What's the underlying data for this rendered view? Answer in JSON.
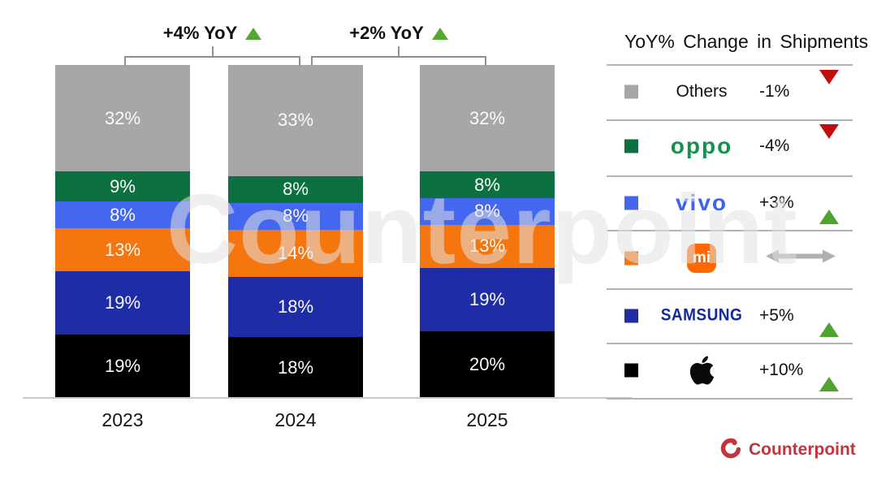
{
  "watermark": "Counterpoint",
  "chart_data": {
    "type": "bar",
    "stacked": true,
    "unit": "%",
    "title": "",
    "xlabel": "",
    "ylabel": "",
    "legend_position": "right",
    "grid": false,
    "categories": [
      "2023",
      "2024",
      "2025"
    ],
    "series": [
      {
        "name": "Others",
        "color": "#a7a7a7",
        "values": [
          32,
          33,
          32
        ]
      },
      {
        "name": "OPPO",
        "color": "#0d7040",
        "values": [
          9,
          8,
          8
        ]
      },
      {
        "name": "vivo",
        "color": "#4467f0",
        "values": [
          8,
          8,
          8
        ]
      },
      {
        "name": "Xiaomi",
        "color": "#f5750e",
        "values": [
          13,
          14,
          13
        ]
      },
      {
        "name": "Samsung",
        "color": "#1e2da5",
        "values": [
          19,
          18,
          19
        ]
      },
      {
        "name": "Apple",
        "color": "#000000",
        "values": [
          19,
          18,
          20
        ]
      }
    ],
    "annotations": [
      {
        "label": "+4% YoY",
        "trend": "up",
        "between": [
          "2023",
          "2024"
        ]
      },
      {
        "label": "+2% YoY",
        "trend": "up",
        "between": [
          "2024",
          "2025"
        ]
      }
    ]
  },
  "legend": {
    "title": "YoY% Change in Shipments",
    "rows": [
      {
        "brand": "Others",
        "logo_text": "Others",
        "yoy": "-1%",
        "trend": "down"
      },
      {
        "brand": "OPPO",
        "logo_text": "oppo",
        "yoy": "-4%",
        "trend": "down"
      },
      {
        "brand": "vivo",
        "logo_text": "vivo",
        "yoy": "+3%",
        "trend": "up"
      },
      {
        "brand": "Xiaomi",
        "logo_text": "mi",
        "yoy": "",
        "trend": "flat"
      },
      {
        "brand": "Samsung",
        "logo_text": "SAMSUNG",
        "yoy": "+5%",
        "trend": "up"
      },
      {
        "brand": "Apple",
        "logo_text": "",
        "yoy": "+10%",
        "trend": "up"
      }
    ],
    "trend_colors": {
      "up": "#4fa32e",
      "down": "#c20d0d",
      "flat": "#b0b0b0"
    }
  },
  "footer": {
    "brand": "Counterpoint",
    "color": "#c4343c"
  }
}
